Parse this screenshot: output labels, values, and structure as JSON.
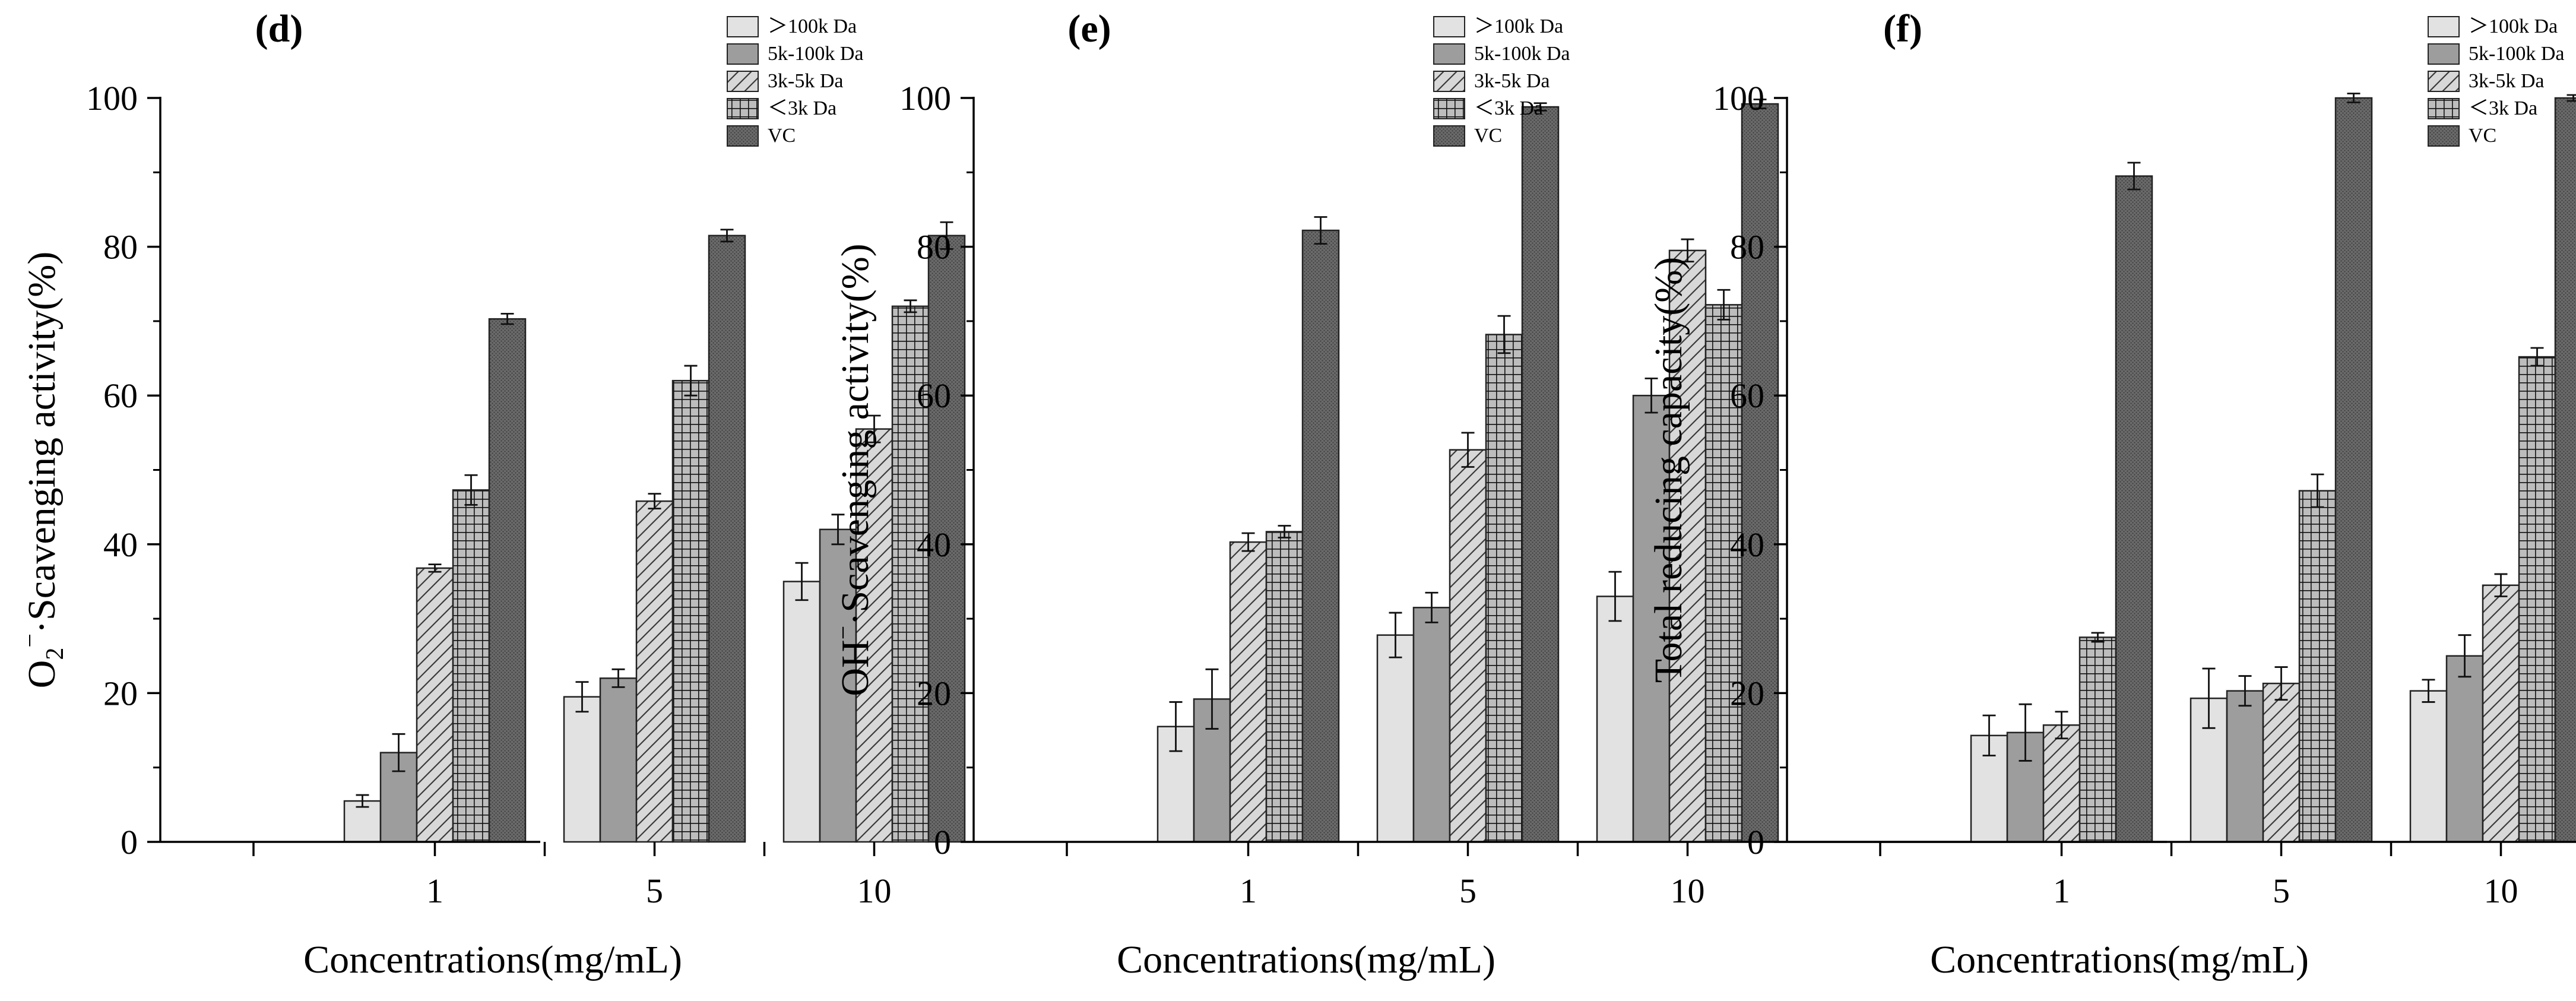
{
  "chart_data": [
    {
      "type": "bar",
      "panel_label": "(d)",
      "ylabel_main": "O",
      "ylabel_sub": "2",
      "ylabel_sup": "−",
      "ylabel_rest": "·Scavenging activity(%)",
      "xlabel": "Concentrations(mg/mL)",
      "categories": [
        "1",
        "5",
        "10"
      ],
      "ylim": [
        0,
        100
      ],
      "yticks": [
        "0",
        "20",
        "40",
        "60",
        "80",
        "100"
      ],
      "legend_placement": "top-right",
      "series": [
        {
          "name": "＞100k Da",
          "values": [
            5.5,
            19.5,
            35
          ],
          "errors": [
            0.8,
            2,
            2.5
          ]
        },
        {
          "name": "5k-100k Da",
          "values": [
            12,
            22,
            42
          ],
          "errors": [
            2.5,
            1.2,
            2
          ]
        },
        {
          "name": "3k-5k Da",
          "values": [
            36.8,
            45.8,
            55.5
          ],
          "errors": [
            0.5,
            1,
            1.8
          ]
        },
        {
          "name": "＜3k Da",
          "values": [
            47.3,
            62,
            72
          ],
          "errors": [
            2,
            2,
            0.8
          ]
        },
        {
          "name": "VC",
          "values": [
            70.3,
            81.5,
            81.5
          ],
          "errors": [
            0.7,
            0.8,
            1.8
          ]
        }
      ]
    },
    {
      "type": "bar",
      "panel_label": "(e)",
      "ylabel_main": "OH",
      "ylabel_sub": "",
      "ylabel_sup": "−",
      "ylabel_rest": "·Scavenging activity(%)",
      "xlabel": "Concentrations(mg/mL)",
      "categories": [
        "1",
        "5",
        "10"
      ],
      "ylim": [
        0,
        100
      ],
      "yticks": [
        "0",
        "20",
        "40",
        "60",
        "80",
        "100"
      ],
      "legend_placement": "top-right",
      "series": [
        {
          "name": "＞100k Da",
          "values": [
            15.5,
            27.8,
            33
          ],
          "errors": [
            3.3,
            3,
            3.3
          ]
        },
        {
          "name": "5k-100k Da",
          "values": [
            19.2,
            31.5,
            60
          ],
          "errors": [
            4,
            2,
            2.3
          ]
        },
        {
          "name": "3k-5k Da",
          "values": [
            40.3,
            52.7,
            79.5
          ],
          "errors": [
            1.2,
            2.3,
            1.5
          ]
        },
        {
          "name": "＜3k Da",
          "values": [
            41.7,
            68.2,
            72.2
          ],
          "errors": [
            0.8,
            2.5,
            2
          ]
        },
        {
          "name": "VC",
          "values": [
            82.2,
            98.8,
            99.2
          ],
          "errors": [
            1.8,
            0.5,
            0.6
          ]
        }
      ]
    },
    {
      "type": "bar",
      "panel_label": "(f)",
      "ylabel_main": "Total reducing capacity(%)",
      "ylabel_sub": "",
      "ylabel_sup": "",
      "ylabel_rest": "",
      "xlabel": "Concentrations(mg/mL)",
      "categories": [
        "1",
        "5",
        "10"
      ],
      "ylim": [
        0,
        100
      ],
      "yticks": [
        "0",
        "20",
        "40",
        "60",
        "80",
        "100"
      ],
      "legend_placement": "top-right",
      "series": [
        {
          "name": "＞100k Da",
          "values": [
            14.3,
            19.3,
            20.3
          ],
          "errors": [
            2.7,
            4,
            1.5
          ]
        },
        {
          "name": "5k-100k Da",
          "values": [
            14.7,
            20.3,
            25
          ],
          "errors": [
            3.8,
            2,
            2.8
          ]
        },
        {
          "name": "3k-5k Da",
          "values": [
            15.7,
            21.3,
            34.5
          ],
          "errors": [
            1.8,
            2.2,
            1.5
          ]
        },
        {
          "name": "＜3k Da",
          "values": [
            27.5,
            47.2,
            65.2
          ],
          "errors": [
            0.6,
            2.2,
            1.2
          ]
        },
        {
          "name": "VC",
          "values": [
            89.5,
            100,
            100
          ],
          "errors": [
            1.8,
            0.6,
            0.4
          ]
        }
      ]
    }
  ]
}
